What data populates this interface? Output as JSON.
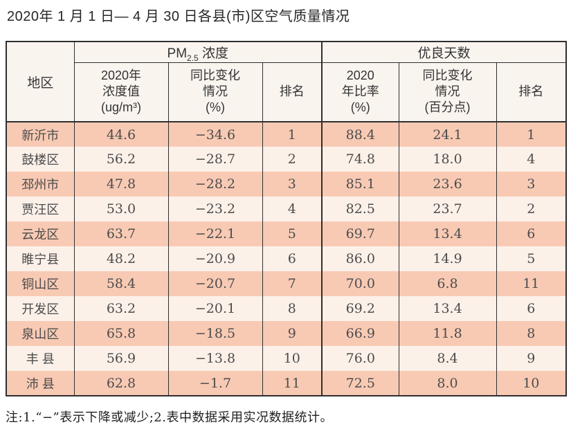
{
  "title": "2020年 1 月 1 日— 4 月 30 日各县(市)区空气质量情况",
  "colors": {
    "band_dark": "#f8cab4",
    "band_light": "#fcf1e9",
    "header_bg": "#faf4ef",
    "border": "#2e2e2e"
  },
  "table": {
    "region_header": "地区",
    "pm_group": {
      "prefix": "PM",
      "sub": "2.5",
      "suffix": " 浓度"
    },
    "days_group": "优良天数",
    "sub_headers": {
      "pm_value": "2020年\n浓度值\n(ug/m³)",
      "pm_change": "同比变化\n情况\n(%)",
      "pm_rank": "排名",
      "days_ratio": "2020\n年比率\n(%)",
      "days_change": "同比变化\n情况\n(百分点)",
      "days_rank": "排名"
    },
    "rows": [
      [
        "新沂市",
        "44.6",
        "−34.6",
        "1",
        "88.4",
        "24.1",
        "1"
      ],
      [
        "鼓楼区",
        "56.2",
        "−28.7",
        "2",
        "74.8",
        "18.0",
        "4"
      ],
      [
        "邳州市",
        "47.8",
        "−28.2",
        "3",
        "85.1",
        "23.6",
        "3"
      ],
      [
        "贾汪区",
        "53.0",
        "−23.2",
        "4",
        "82.5",
        "23.7",
        "2"
      ],
      [
        "云龙区",
        "63.7",
        "−22.1",
        "5",
        "69.7",
        "13.4",
        "6"
      ],
      [
        "睢宁县",
        "48.2",
        "−20.9",
        "6",
        "86.0",
        "14.9",
        "5"
      ],
      [
        "铜山区",
        "58.4",
        "−20.7",
        "7",
        "70.0",
        "6.8",
        "11"
      ],
      [
        "开发区",
        "63.2",
        "−20.1",
        "8",
        "69.2",
        "13.4",
        "6"
      ],
      [
        "泉山区",
        "65.8",
        "−18.5",
        "9",
        "66.9",
        "11.8",
        "8"
      ],
      [
        "丰 县",
        "56.9",
        "−13.8",
        "10",
        "76.0",
        "8.4",
        "9"
      ],
      [
        "沛 县",
        "62.8",
        "−1.7",
        "11",
        "72.5",
        "8.0",
        "10"
      ]
    ]
  },
  "note": "注:1.“−”表示下降或减少;2.表中数据采用实况数据统计。"
}
